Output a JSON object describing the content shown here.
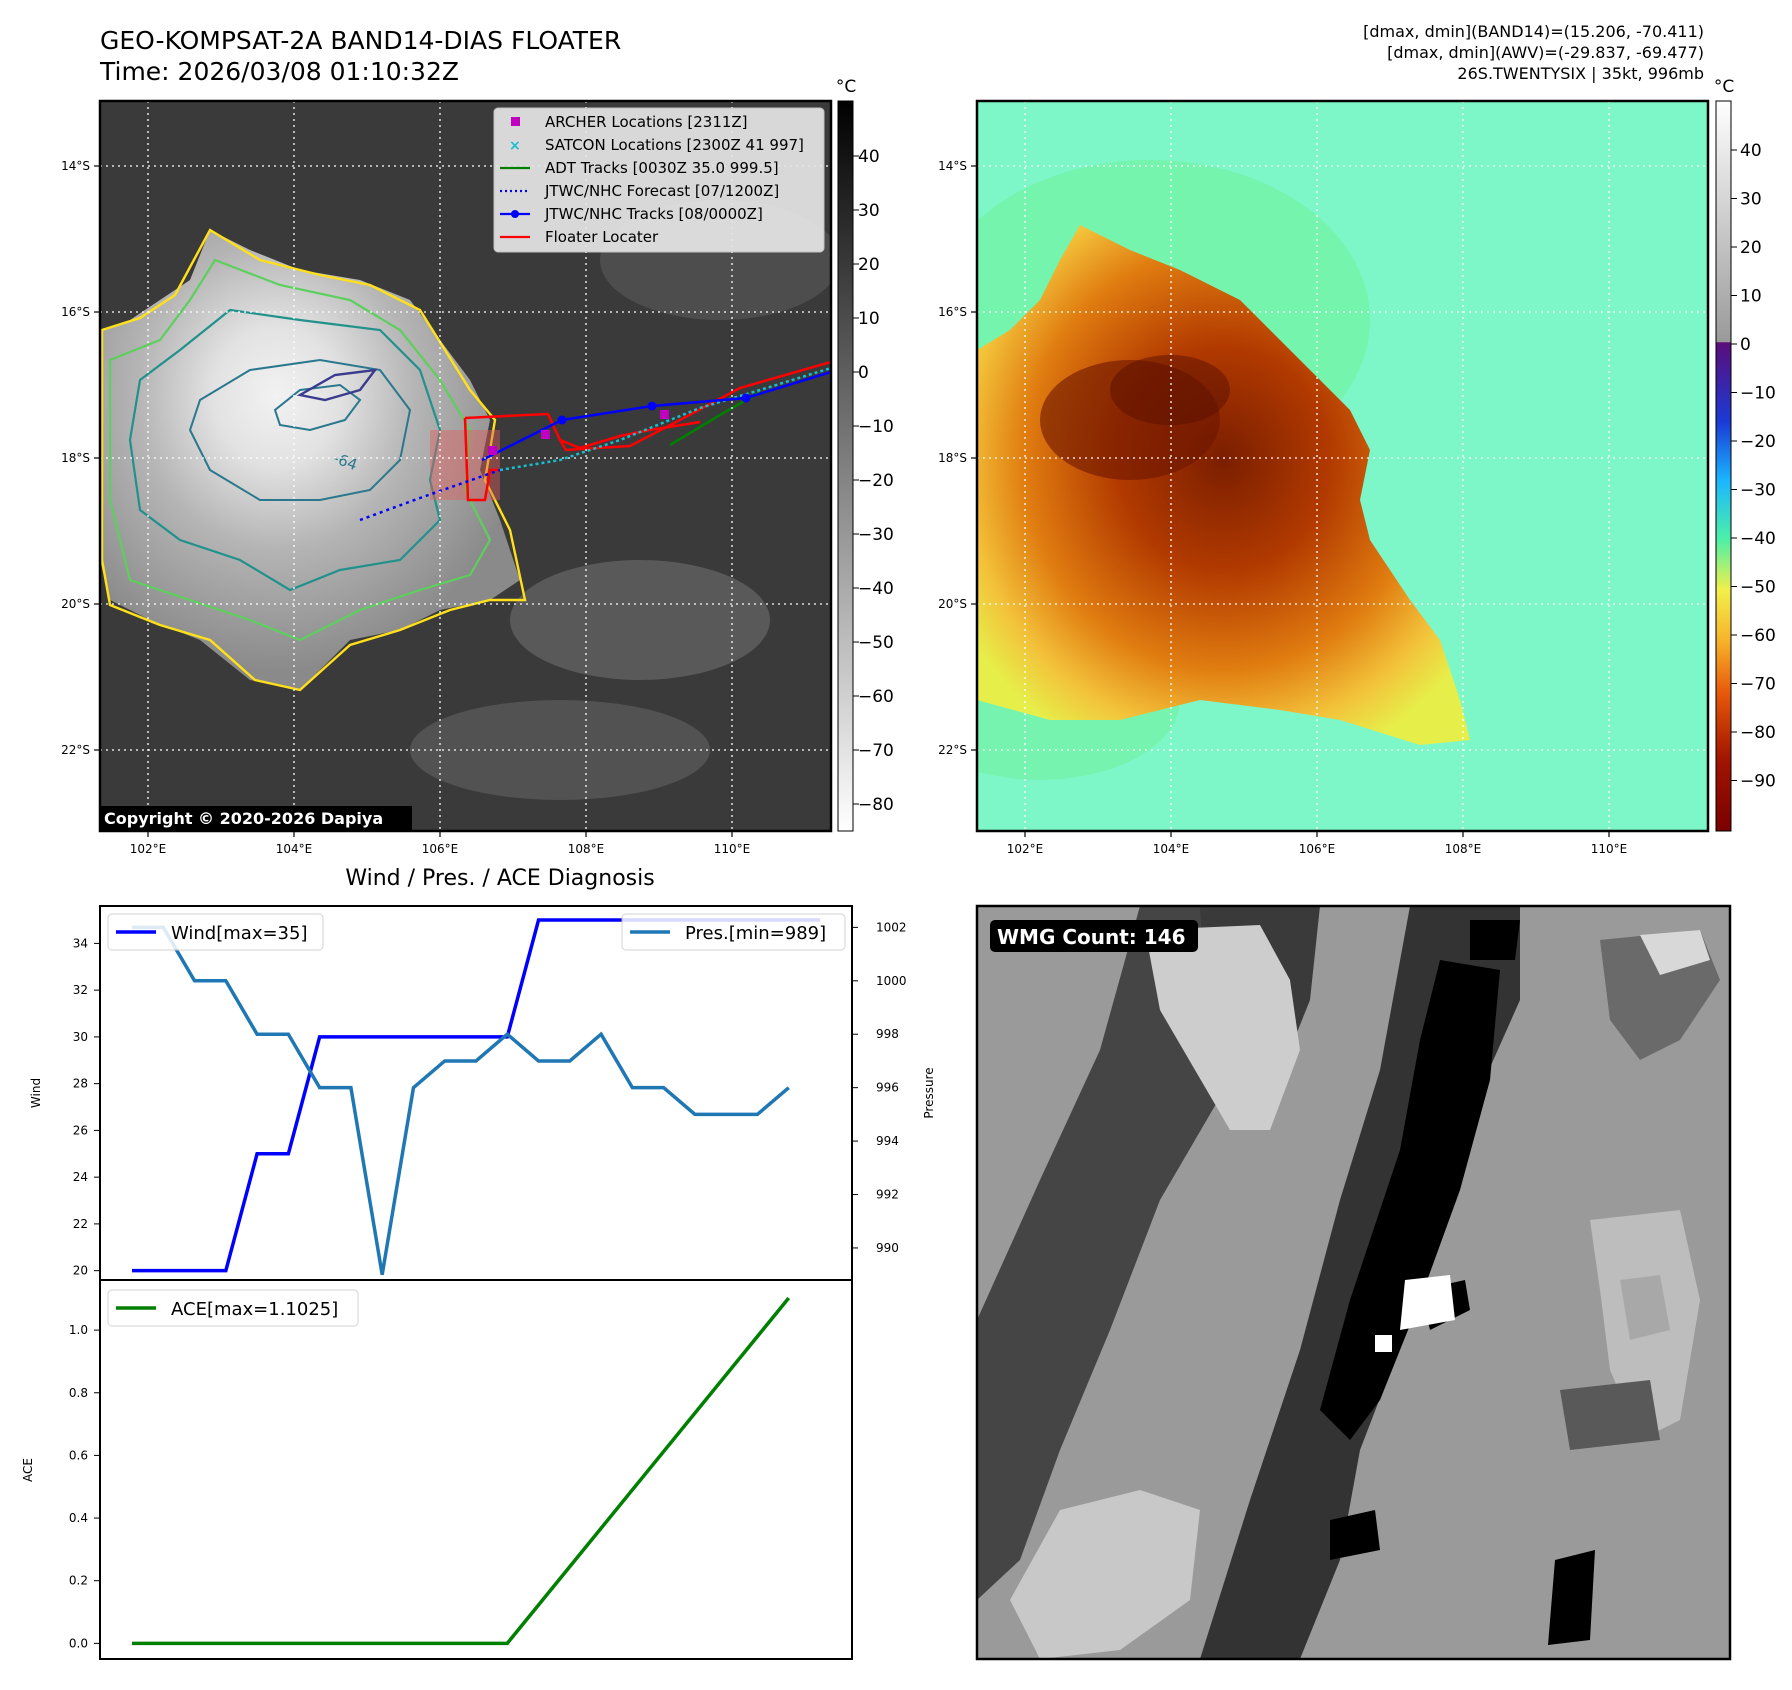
{
  "header": {
    "title_line1": "GEO-KOMPSAT-2A BAND14-DIAS FLOATER",
    "title_line2": "Time: 2026/03/08 01:10:32Z",
    "info_line1": "[dmax, dmin](BAND14)=(15.206, -70.411)",
    "info_line2": "[dmax, dmin](AWV)=(-29.837, -69.477)",
    "info_line3": "26S.TWENTYSIX | 35kt, 996mb"
  },
  "map": {
    "lon_ticks": [
      "102°E",
      "104°E",
      "106°E",
      "108°E",
      "110°E"
    ],
    "lat_ticks": [
      "14°S",
      "16°S",
      "18°S",
      "20°S",
      "22°S"
    ],
    "contour_label": "-64",
    "copyright": "Copyright © 2020-2026 Dapiya",
    "colorbar_unit": "°C",
    "colorbar_ir_ticks": [
      "40",
      "30",
      "20",
      "10",
      "0",
      "−10",
      "−20",
      "−30",
      "−40",
      "−50",
      "−60",
      "−70",
      "−80"
    ],
    "colorbar_awv_ticks": [
      "40",
      "30",
      "20",
      "10",
      "0",
      "−10",
      "−20",
      "−30",
      "−40",
      "−50",
      "−60",
      "−70",
      "−80",
      "−90"
    ],
    "legend": [
      {
        "label": "ARCHER Locations [2311Z]",
        "color": "#c000c0",
        "kind": "square"
      },
      {
        "label": "SATCON Locations [2300Z 41 997]",
        "color": "#17becf",
        "kind": "cross"
      },
      {
        "label": "ADT Tracks [0030Z 35.0 999.5]",
        "color": "#008000",
        "kind": "line"
      },
      {
        "label": "JTWC/NHC Forecast [07/1200Z]",
        "color": "#0000ff",
        "kind": "dotted"
      },
      {
        "label": "JTWC/NHC Tracks [08/0000Z]",
        "color": "#0000ff",
        "kind": "line-dot"
      },
      {
        "label": "Floater Locater",
        "color": "#ff0000",
        "kind": "line"
      }
    ]
  },
  "wmg": {
    "label": "WMG Count: 146"
  },
  "diagnosis": {
    "title": "Wind / Pres. / ACE Diagnosis"
  },
  "chart_data": [
    {
      "type": "line",
      "title": "Wind / Pres. / ACE Diagnosis",
      "ylabel": "Wind",
      "ylabel_right": "Pressure",
      "ylim": [
        19.6,
        35.6
      ],
      "ylim_right": [
        988.8,
        1002.8
      ],
      "yticks": [
        20,
        22,
        24,
        26,
        28,
        30,
        32,
        34
      ],
      "yticks_right": [
        990,
        992,
        994,
        996,
        998,
        1000,
        1002
      ],
      "x": [
        0,
        1,
        2,
        3,
        4,
        5,
        6,
        7,
        8,
        9,
        10,
        11,
        12,
        13,
        14,
        15,
        16,
        17,
        18,
        19,
        20,
        21,
        22
      ],
      "series": [
        {
          "name": "Wind[max=35]",
          "axis": "left",
          "color": "#0000ff",
          "values": [
            20,
            20,
            20,
            20,
            25,
            25,
            30,
            30,
            30,
            30,
            30,
            30,
            30,
            35,
            35,
            35,
            35,
            35,
            35,
            35,
            35,
            35,
            35
          ]
        },
        {
          "name": "Pres.[min=989]",
          "axis": "right",
          "color": "#1f77b4",
          "values": [
            1002,
            1002,
            1000,
            1000,
            998,
            998,
            996,
            996,
            989,
            996,
            997,
            997,
            998,
            997,
            997,
            998,
            996,
            996,
            995,
            995,
            995,
            996,
            null
          ]
        }
      ]
    },
    {
      "type": "line",
      "ylabel": "ACE",
      "ylim": [
        -0.05,
        1.16
      ],
      "yticks": [
        0.0,
        0.2,
        0.4,
        0.6,
        0.8,
        1.0
      ],
      "x": [
        0,
        12,
        21
      ],
      "series": [
        {
          "name": "ACE[max=1.1025]",
          "color": "#008000",
          "values": [
            0,
            0,
            1.1025
          ]
        }
      ]
    }
  ]
}
